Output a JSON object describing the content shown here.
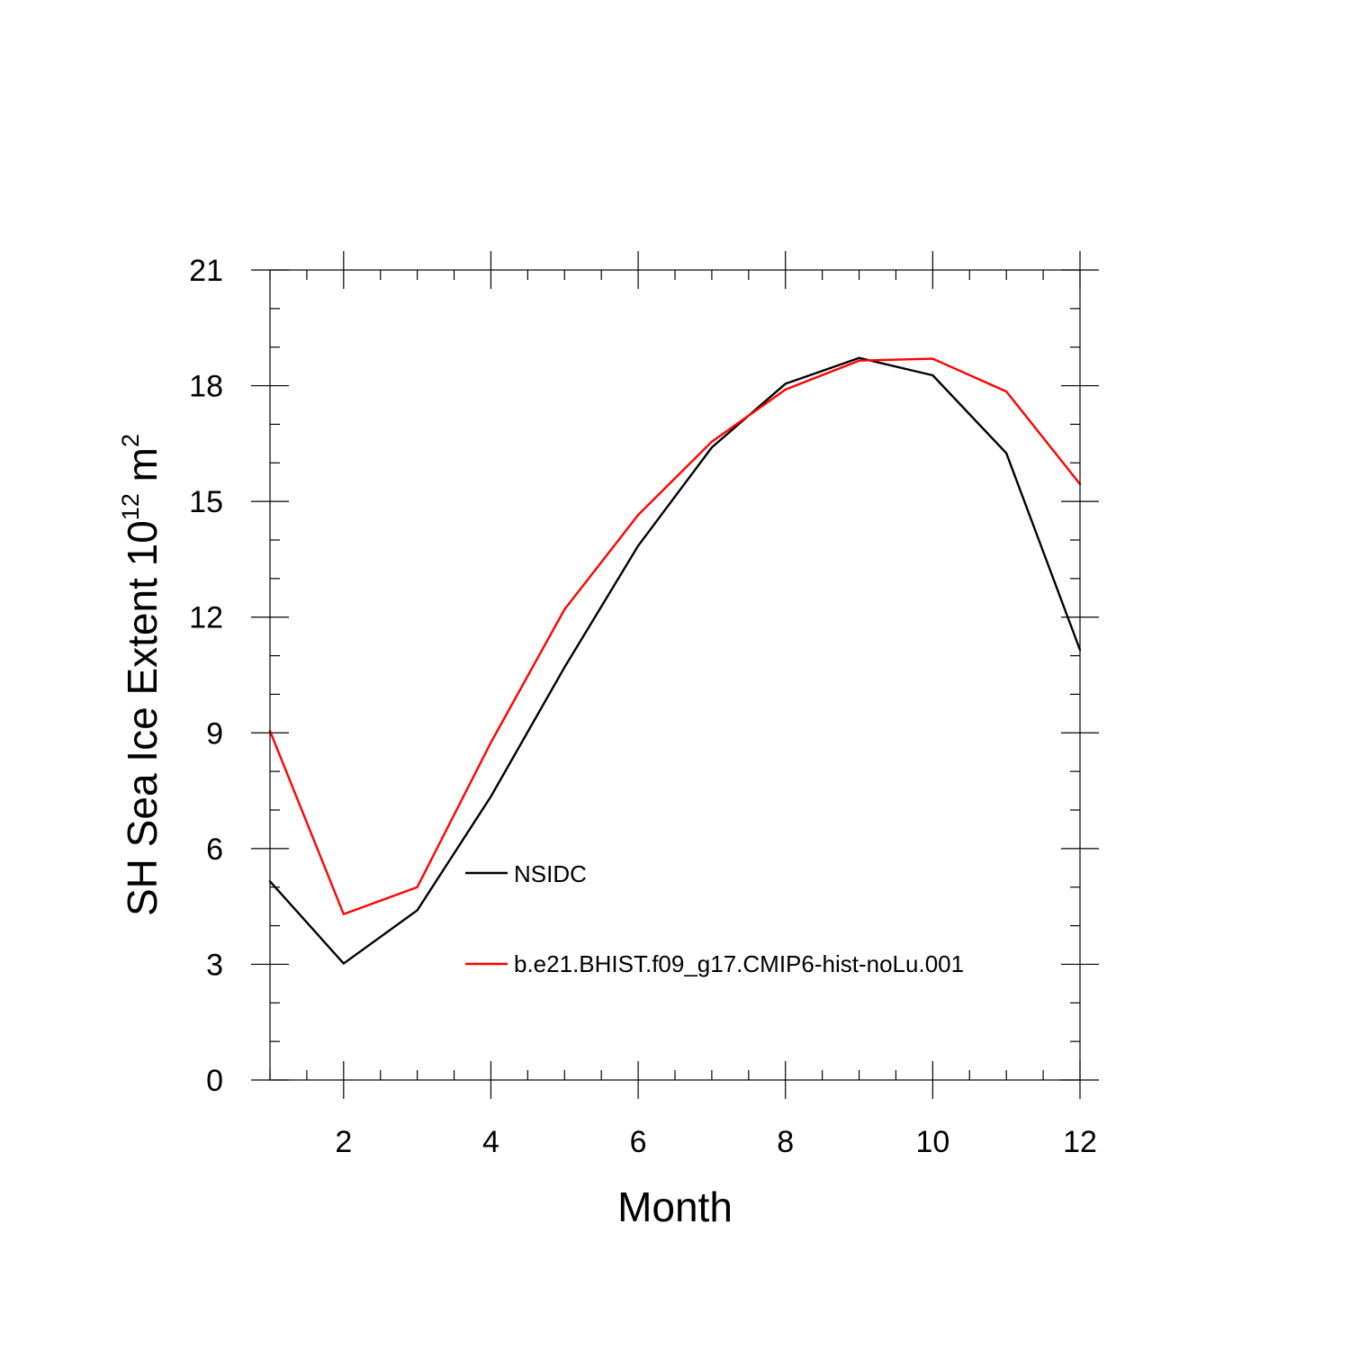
{
  "chart_data": {
    "type": "line",
    "title": "",
    "xlabel": "Month",
    "ylabel": {
      "main": "SH Sea Ice Extent 10",
      "sup1": "12",
      "unit": " m",
      "sup2": "2"
    },
    "xlim": [
      1,
      12
    ],
    "ylim": [
      0,
      21
    ],
    "xticks": [
      2,
      4,
      6,
      8,
      10,
      12
    ],
    "xtick_labels": [
      "2",
      "4",
      "6",
      "8",
      "10",
      "12"
    ],
    "yticks": [
      0,
      3,
      6,
      9,
      12,
      15,
      18,
      21
    ],
    "ytick_labels": [
      "0",
      "3",
      "6",
      "9",
      "12",
      "15",
      "18",
      "21"
    ],
    "grid": false,
    "legend_position": "inside-lower-center",
    "x": [
      1,
      2,
      3,
      4,
      5,
      6,
      7,
      8,
      9,
      10,
      11,
      12
    ],
    "series": [
      {
        "name": "NSIDC",
        "color": "#000000",
        "values": [
          5.15,
          3.02,
          4.4,
          7.35,
          10.7,
          13.85,
          16.4,
          18.05,
          18.72,
          18.27,
          16.25,
          11.15
        ]
      },
      {
        "name": "b.e21.BHIST.f09_g17.CMIP6-hist-noLu.001",
        "color": "#ff0000",
        "values": [
          9.05,
          4.3,
          5.0,
          8.75,
          12.2,
          14.65,
          16.55,
          17.9,
          18.65,
          18.7,
          17.85,
          15.45
        ]
      }
    ]
  }
}
